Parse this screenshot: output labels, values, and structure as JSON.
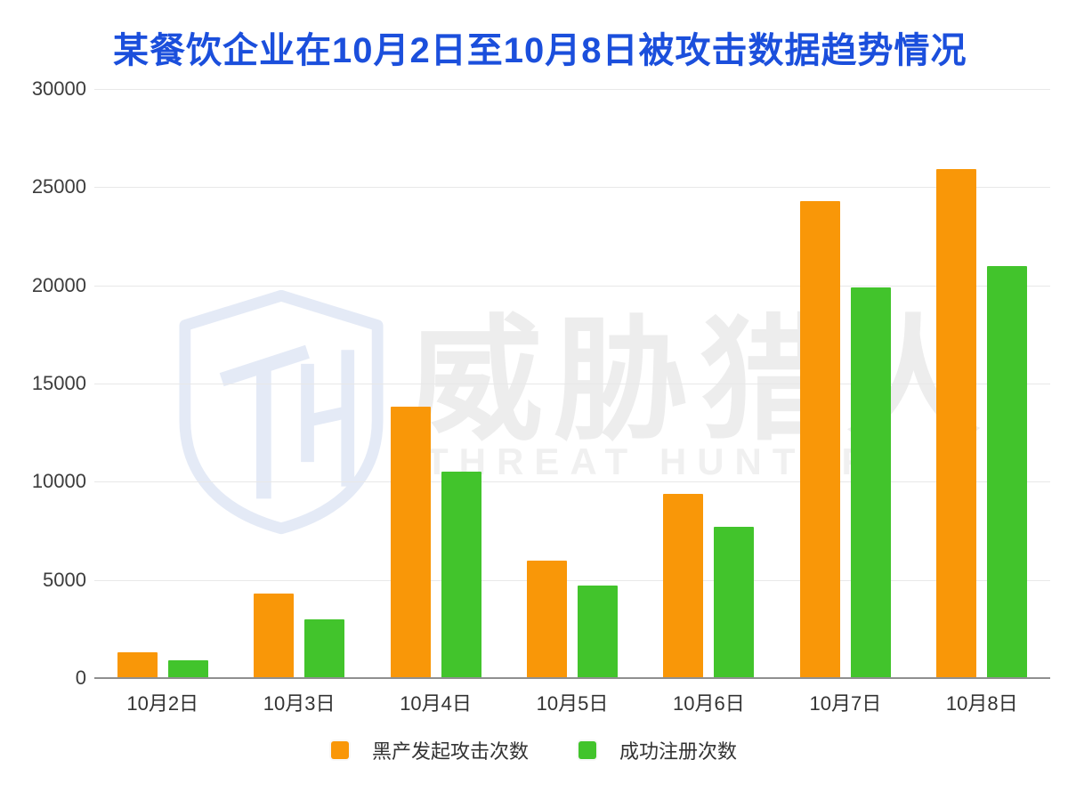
{
  "title": {
    "text": "某餐饮企业在10月2日至10月8日被攻击数据趋势情况",
    "color": "#1B4FDC"
  },
  "watermark": {
    "chinese": "威胁猎人",
    "latin": "THREAT HUNTER",
    "shield_monogram": "TH",
    "shield_color": "#E4EAF6"
  },
  "colors": {
    "grid_line": "#E8E8E8",
    "axis_line": "#8F8F8F",
    "tick_text": "#3C3C3C"
  },
  "chart_data": {
    "type": "bar",
    "title": "某餐饮企业在10月2日至10月8日被攻击数据趋势情况",
    "categories": [
      "10月2日",
      "10月3日",
      "10月4日",
      "10月5日",
      "10月6日",
      "10月7日",
      "10月8日"
    ],
    "series": [
      {
        "name": "黑产发起攻击次数",
        "color": "#F99708",
        "values": [
          1300,
          4300,
          13800,
          6000,
          9400,
          24300,
          25900
        ]
      },
      {
        "name": "成功注册次数",
        "color": "#42C42C",
        "values": [
          900,
          3000,
          10500,
          4700,
          7700,
          19900,
          21000
        ]
      }
    ],
    "xlabel": "",
    "ylabel": "",
    "ylim": [
      0,
      30000
    ],
    "yticks": [
      0,
      5000,
      10000,
      15000,
      20000,
      25000,
      30000
    ],
    "grid": true,
    "legend_position": "bottom"
  }
}
